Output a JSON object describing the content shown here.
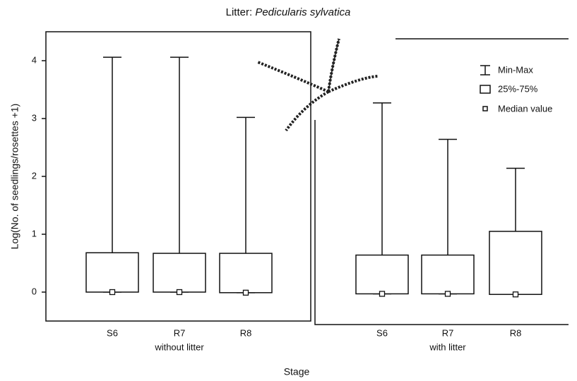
{
  "chart_data": {
    "type": "box",
    "title": [
      "Litter:",
      "Pedicularis sylvatica"
    ],
    "ylabel": "Log(No. of seedlings/rosettes +1)",
    "xlabel": "Stage",
    "ylim": [
      -0.5,
      4.5
    ],
    "yticks": [
      0,
      1,
      2,
      3,
      4
    ],
    "legend": {
      "minmax": "Min-Max",
      "box": "25%-75%",
      "median": "Median value"
    },
    "panels": [
      {
        "label": "without litter",
        "categories": [
          "S6",
          "R7",
          "R8"
        ],
        "min": [
          0,
          0,
          -0.01
        ],
        "q1": [
          0,
          0,
          -0.01
        ],
        "median": [
          0,
          0,
          -0.01
        ],
        "q3": [
          0.68,
          0.67,
          0.67
        ],
        "max": [
          4.06,
          4.06,
          3.02
        ]
      },
      {
        "label": "with litter",
        "categories": [
          "S6",
          "R7",
          "R8"
        ],
        "min": [
          -0.03,
          -0.03,
          -0.04
        ],
        "q1": [
          -0.03,
          -0.03,
          -0.04
        ],
        "median": [
          -0.03,
          -0.03,
          -0.04
        ],
        "q3": [
          0.64,
          0.64,
          1.05
        ],
        "max": [
          3.27,
          2.64,
          2.14
        ]
      }
    ]
  }
}
